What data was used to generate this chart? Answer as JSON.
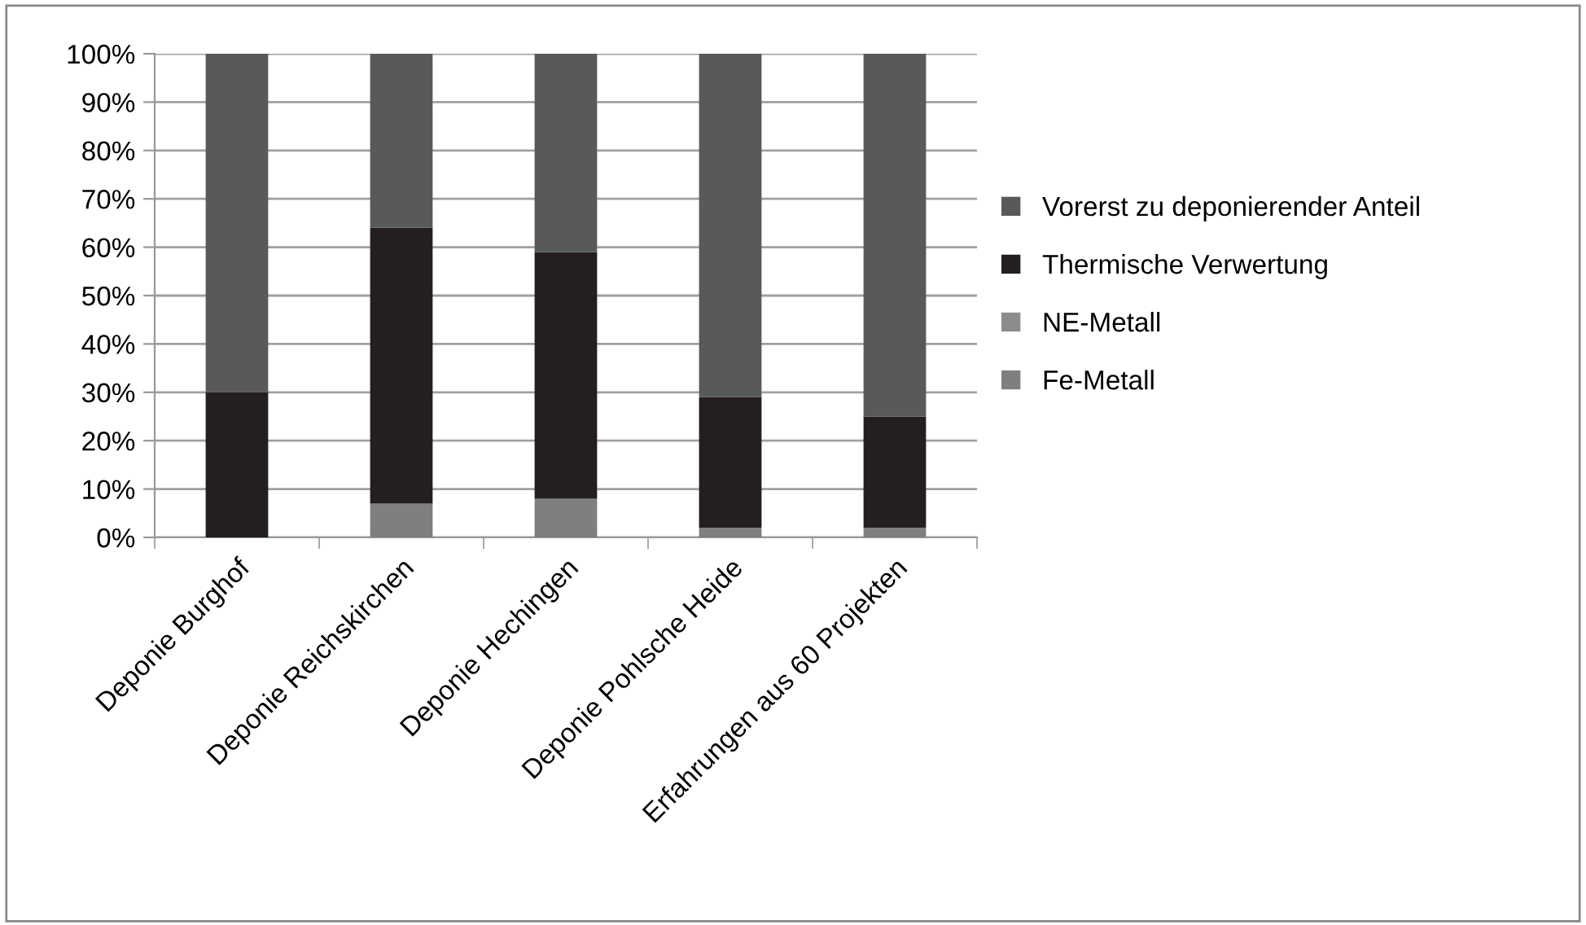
{
  "chart_data": {
    "type": "bar",
    "stacked": true,
    "categories": [
      "Deponie Burghof",
      "Deponie Reichskirchen",
      "Deponie Hechingen",
      "Deponie Pohlsche Heide",
      "Erfahrungen aus 60 Projekten"
    ],
    "series": [
      {
        "name": "Fe-Metall",
        "color": "#7f7f7f",
        "values": [
          0,
          7,
          8,
          2,
          2
        ]
      },
      {
        "name": "NE-Metall",
        "color": "#8c8c8c",
        "values": [
          0,
          0,
          0,
          0,
          0
        ]
      },
      {
        "name": "Thermische Verwertung",
        "color": "#231f20",
        "values": [
          30,
          57,
          51,
          27,
          23
        ]
      },
      {
        "name": "Vorerst zu deponierender Anteil",
        "color": "#58595b",
        "values": [
          70,
          36,
          41,
          71,
          75
        ]
      }
    ],
    "ylim": [
      0,
      100
    ],
    "yticks": [
      {
        "value": 0,
        "label": "0%"
      },
      {
        "value": 10,
        "label": "10%"
      },
      {
        "value": 20,
        "label": "20%"
      },
      {
        "value": 30,
        "label": "30%"
      },
      {
        "value": 40,
        "label": "40%"
      },
      {
        "value": 50,
        "label": "50%"
      },
      {
        "value": 60,
        "label": "60%"
      },
      {
        "value": 70,
        "label": "70%"
      },
      {
        "value": 80,
        "label": "80%"
      },
      {
        "value": 90,
        "label": "90%"
      },
      {
        "value": 100,
        "label": "100%"
      }
    ],
    "grid": "y",
    "legend": "right"
  }
}
